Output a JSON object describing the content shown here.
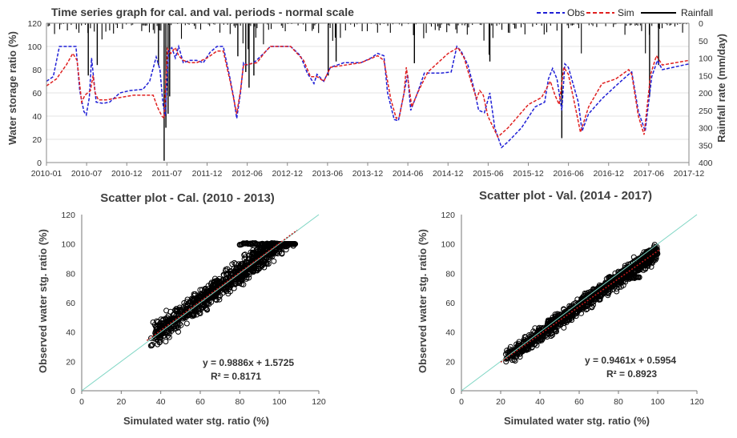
{
  "chart_data": [
    {
      "type": "line",
      "title": "Time series graph for cal. and val. periods - normal scale",
      "xlabel": "",
      "ylabel": "Water storage ratio (%)",
      "y2label": "Rainfall rate (mm/day)",
      "ylim": [
        0,
        120
      ],
      "y2lim": [
        400,
        0
      ],
      "y_ticks": [
        "0",
        "20",
        "40",
        "60",
        "80",
        "100",
        "120"
      ],
      "y2_ticks": [
        "0",
        "50",
        "100",
        "150",
        "200",
        "250",
        "300",
        "350",
        "400"
      ],
      "x_ticks": [
        "2010-01",
        "2010-07",
        "2010-12",
        "2011-07",
        "2011-12",
        "2012-06",
        "2012-12",
        "2013-06",
        "2013-12",
        "2014-06",
        "2014-12",
        "2015-06",
        "2015-12",
        "2016-06",
        "2016-12",
        "2017-06",
        "2017-12"
      ],
      "x_range": [
        "2010-01-01",
        "2017-12-31"
      ],
      "legend_position": "top-right",
      "series": [
        {
          "name": "Obs",
          "style": "dashed",
          "color": "#1f1fd6",
          "points": [
            [
              "2010-01-01",
              70
            ],
            [
              "2010-02-01",
              74
            ],
            [
              "2010-03-01",
              100
            ],
            [
              "2010-04-15",
              100
            ],
            [
              "2010-05-15",
              100
            ],
            [
              "2010-06-01",
              62
            ],
            [
              "2010-06-20",
              44
            ],
            [
              "2010-07-01",
              41
            ],
            [
              "2010-07-15",
              56
            ],
            [
              "2010-07-25",
              90
            ],
            [
              "2010-08-05",
              70
            ],
            [
              "2010-08-15",
              52
            ],
            [
              "2010-09-15",
              51
            ],
            [
              "2010-10-15",
              52
            ],
            [
              "2010-12-01",
              60
            ],
            [
              "2011-01-15",
              62
            ],
            [
              "2011-03-15",
              63
            ],
            [
              "2011-04-15",
              70
            ],
            [
              "2011-05-15",
              91
            ],
            [
              "2011-06-01",
              80
            ],
            [
              "2011-06-15",
              50
            ],
            [
              "2011-06-25",
              40
            ],
            [
              "2011-07-10",
              96
            ],
            [
              "2011-07-25",
              99
            ],
            [
              "2011-08-10",
              90
            ],
            [
              "2011-08-25",
              100
            ],
            [
              "2011-09-15",
              86
            ],
            [
              "2011-10-15",
              88
            ],
            [
              "2011-11-15",
              88
            ],
            [
              "2011-12-15",
              86
            ],
            [
              "2012-01-15",
              95
            ],
            [
              "2012-02-15",
              100
            ],
            [
              "2012-03-15",
              100
            ],
            [
              "2012-04-15",
              72
            ],
            [
              "2012-05-01",
              56
            ],
            [
              "2012-05-15",
              38
            ],
            [
              "2012-06-01",
              60
            ],
            [
              "2012-06-15",
              86
            ],
            [
              "2012-07-01",
              84
            ],
            [
              "2012-08-01",
              86
            ],
            [
              "2012-09-15",
              94
            ],
            [
              "2012-10-15",
              100
            ],
            [
              "2012-11-15",
              100
            ],
            [
              "2013-01-15",
              100
            ],
            [
              "2013-03-01",
              92
            ],
            [
              "2013-04-01",
              77
            ],
            [
              "2013-05-01",
              68
            ],
            [
              "2013-05-15",
              76
            ],
            [
              "2013-06-15",
              70
            ],
            [
              "2013-07-15",
              82
            ],
            [
              "2013-09-15",
              86
            ],
            [
              "2013-12-01",
              86
            ],
            [
              "2014-01-15",
              90
            ],
            [
              "2014-02-15",
              94
            ],
            [
              "2014-03-15",
              92
            ],
            [
              "2014-04-01",
              60
            ],
            [
              "2014-05-01",
              37
            ],
            [
              "2014-05-20",
              36
            ],
            [
              "2014-06-15",
              60
            ],
            [
              "2014-07-01",
              76
            ],
            [
              "2014-07-15",
              45
            ],
            [
              "2014-08-15",
              60
            ],
            [
              "2014-09-15",
              77
            ],
            [
              "2014-12-01",
              77
            ],
            [
              "2015-01-15",
              78
            ],
            [
              "2015-02-10",
              100
            ],
            [
              "2015-03-01",
              96
            ],
            [
              "2015-04-01",
              84
            ],
            [
              "2015-05-01",
              62
            ],
            [
              "2015-05-20",
              45
            ],
            [
              "2015-06-15",
              43
            ],
            [
              "2015-07-10",
              60
            ],
            [
              "2015-08-01",
              30
            ],
            [
              "2015-09-01",
              13
            ],
            [
              "2015-10-01",
              18
            ],
            [
              "2015-12-01",
              30
            ],
            [
              "2016-02-01",
              48
            ],
            [
              "2016-03-15",
              52
            ],
            [
              "2016-04-01",
              72
            ],
            [
              "2016-04-20",
              81
            ],
            [
              "2016-05-10",
              72
            ],
            [
              "2016-06-01",
              45
            ],
            [
              "2016-06-15",
              85
            ],
            [
              "2016-07-01",
              82
            ],
            [
              "2016-08-15",
              52
            ],
            [
              "2016-09-01",
              27
            ],
            [
              "2016-10-01",
              42
            ],
            [
              "2016-12-01",
              55
            ],
            [
              "2017-02-01",
              66
            ],
            [
              "2017-04-01",
              76
            ],
            [
              "2017-04-15",
              78
            ],
            [
              "2017-05-15",
              44
            ],
            [
              "2017-06-15",
              27
            ],
            [
              "2017-07-15",
              74
            ],
            [
              "2017-08-10",
              88
            ],
            [
              "2017-09-01",
              80
            ],
            [
              "2017-12-31",
              85
            ]
          ]
        },
        {
          "name": "Sim",
          "style": "dashed",
          "color": "#e02020",
          "points": [
            [
              "2010-01-01",
              66
            ],
            [
              "2010-02-15",
              72
            ],
            [
              "2010-04-01",
              84
            ],
            [
              "2010-05-01",
              94
            ],
            [
              "2010-05-20",
              88
            ],
            [
              "2010-06-10",
              52
            ],
            [
              "2010-06-25",
              58
            ],
            [
              "2010-07-20",
              62
            ],
            [
              "2010-08-01",
              75
            ],
            [
              "2010-08-10",
              60
            ],
            [
              "2010-08-25",
              54
            ],
            [
              "2010-10-01",
              54
            ],
            [
              "2011-02-01",
              58
            ],
            [
              "2011-05-01",
              58
            ],
            [
              "2011-05-20",
              48
            ],
            [
              "2011-06-10",
              40
            ],
            [
              "2011-06-20",
              38
            ],
            [
              "2011-07-05",
              98
            ],
            [
              "2011-07-20",
              94
            ],
            [
              "2011-08-10",
              99
            ],
            [
              "2011-08-25",
              92
            ],
            [
              "2011-09-15",
              88
            ],
            [
              "2011-10-15",
              86
            ],
            [
              "2011-11-15",
              86
            ],
            [
              "2012-01-01",
              90
            ],
            [
              "2012-02-15",
              96
            ],
            [
              "2012-03-15",
              96
            ],
            [
              "2012-04-15",
              70
            ],
            [
              "2012-05-15",
              42
            ],
            [
              "2012-06-01",
              62
            ],
            [
              "2012-06-15",
              84
            ],
            [
              "2012-08-15",
              86
            ],
            [
              "2012-09-20",
              95
            ],
            [
              "2012-10-15",
              100
            ],
            [
              "2013-01-15",
              100
            ],
            [
              "2013-03-15",
              88
            ],
            [
              "2013-04-15",
              74
            ],
            [
              "2013-05-15",
              74
            ],
            [
              "2013-06-15",
              70
            ],
            [
              "2013-07-15",
              82
            ],
            [
              "2013-12-01",
              86
            ],
            [
              "2014-02-15",
              92
            ],
            [
              "2014-03-15",
              88
            ],
            [
              "2014-04-15",
              55
            ],
            [
              "2014-05-10",
              38
            ],
            [
              "2014-05-25",
              40
            ],
            [
              "2014-06-15",
              60
            ],
            [
              "2014-06-25",
              82
            ],
            [
              "2014-07-20",
              48
            ],
            [
              "2014-08-15",
              60
            ],
            [
              "2014-10-01",
              78
            ],
            [
              "2015-01-01",
              94
            ],
            [
              "2015-02-15",
              99
            ],
            [
              "2015-03-15",
              90
            ],
            [
              "2015-04-15",
              70
            ],
            [
              "2015-05-10",
              55
            ],
            [
              "2015-05-25",
              62
            ],
            [
              "2015-06-10",
              58
            ],
            [
              "2015-07-01",
              40
            ],
            [
              "2015-08-15",
              22
            ],
            [
              "2015-10-01",
              30
            ],
            [
              "2016-01-01",
              50
            ],
            [
              "2016-03-01",
              56
            ],
            [
              "2016-04-10",
              70
            ],
            [
              "2016-05-01",
              58
            ],
            [
              "2016-05-20",
              50
            ],
            [
              "2016-06-10",
              82
            ],
            [
              "2016-07-01",
              76
            ],
            [
              "2016-08-01",
              48
            ],
            [
              "2016-08-25",
              26
            ],
            [
              "2016-10-01",
              48
            ],
            [
              "2016-12-01",
              68
            ],
            [
              "2017-02-01",
              72
            ],
            [
              "2017-04-01",
              80
            ],
            [
              "2017-04-15",
              76
            ],
            [
              "2017-05-15",
              40
            ],
            [
              "2017-06-10",
              24
            ],
            [
              "2017-07-10",
              76
            ],
            [
              "2017-08-05",
              92
            ],
            [
              "2017-09-01",
              84
            ],
            [
              "2017-12-31",
              88
            ]
          ]
        },
        {
          "name": "Rainfall",
          "style": "solid",
          "color": "#000000"
        }
      ]
    },
    {
      "type": "scatter",
      "title": "Scatter plot - Cal. (2010 - 2013)",
      "xlabel": "Simulated water stg. ratio (%)",
      "ylabel": "Observed water stg. ratio (%)",
      "xlim": [
        0,
        120
      ],
      "ylim": [
        0,
        120
      ],
      "x_ticks": [
        "0",
        "20",
        "40",
        "60",
        "80",
        "100",
        "120"
      ],
      "y_ticks": [
        "0",
        "20",
        "40",
        "60",
        "80",
        "100",
        "120"
      ],
      "equation": "y = 0.9886x + 1.5725",
      "r_squared": "R² = 0.8171",
      "fit": {
        "slope": 0.9886,
        "intercept": 1.5725
      },
      "cluster": {
        "x_range": [
          35,
          108
        ],
        "spread": 7,
        "plateau_y": 100,
        "plateau_x": [
          80,
          100
        ]
      }
    },
    {
      "type": "scatter",
      "title": "Scatter plot - Val. (2014 - 2017)",
      "xlabel": "Simulated water stg. ratio (%)",
      "ylabel": "Observed water stg. ratio (%)",
      "xlim": [
        0,
        120
      ],
      "ylim": [
        0,
        120
      ],
      "x_ticks": [
        "0",
        "20",
        "40",
        "60",
        "80",
        "100",
        "120"
      ],
      "y_ticks": [
        "0",
        "20",
        "40",
        "60",
        "80",
        "100",
        "120"
      ],
      "equation": "y = 0.9461x + 0.5954",
      "r_squared": "R² = 0.8923",
      "fit": {
        "slope": 0.9461,
        "intercept": 0.5954
      },
      "cluster": {
        "x_range": [
          22,
          100
        ],
        "spread": 5,
        "plateau_y": 77,
        "plateau_x": [
          75,
          91
        ]
      }
    }
  ],
  "colors": {
    "obs": "#1f1fd6",
    "sim": "#e02020",
    "rainfall": "#000000",
    "one_to_one": "#7fd6c4",
    "trend": "#c01818",
    "marker": "#000000"
  }
}
